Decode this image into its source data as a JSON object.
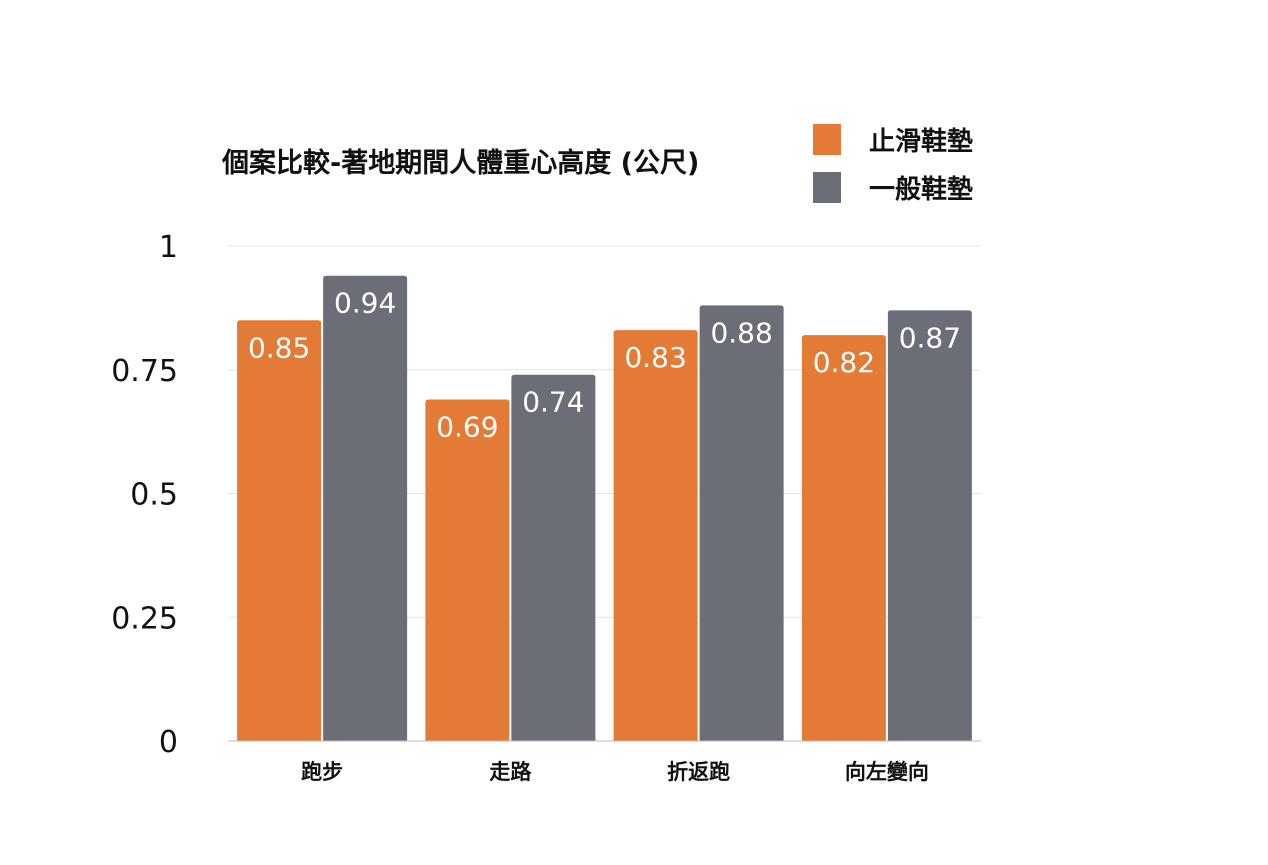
{
  "chart_data": {
    "type": "bar",
    "title": "個案比較-著地期間人體重心高度 (公尺)",
    "xlabel": "",
    "ylabel": "",
    "categories": [
      "跑步",
      "走路",
      "折返跑",
      "向左變向"
    ],
    "series": [
      {
        "name": "止滑鞋墊",
        "values": [
          0.85,
          0.69,
          0.83,
          0.82
        ],
        "value_labels": [
          "0.85",
          "0.69",
          "0.83",
          "0.82"
        ],
        "color": "#E37A35"
      },
      {
        "name": "一般鞋墊",
        "values": [
          0.94,
          0.74,
          0.88,
          0.87
        ],
        "value_labels": [
          "0.94",
          "0.74",
          "0.88",
          "0.87"
        ],
        "color": "#6C6E77"
      }
    ],
    "ylim": [
      0,
      1
    ],
    "yticks": [
      0,
      0.25,
      0.5,
      0.75,
      1
    ],
    "ytick_labels": [
      "0",
      "0.25",
      "0.5",
      "0.75",
      "1"
    ],
    "grid": true,
    "legend": "top-right"
  }
}
